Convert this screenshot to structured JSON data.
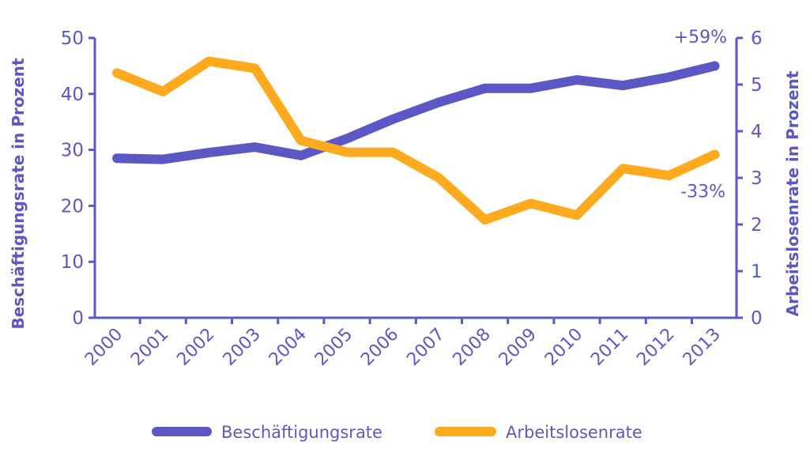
{
  "chart_data": {
    "type": "line",
    "categories": [
      "2000",
      "2001",
      "2002",
      "2003",
      "2004",
      "2005",
      "2006",
      "2007",
      "2008",
      "2009",
      "2010",
      "2011",
      "2012",
      "2013"
    ],
    "series": [
      {
        "name": "Beschäftigungsrate",
        "axis": "left",
        "color": "#5b58c6",
        "values": [
          28.5,
          28.3,
          29.5,
          30.5,
          29.0,
          32.0,
          35.5,
          38.5,
          41.0,
          41.0,
          42.5,
          41.5,
          43.0,
          45.0
        ]
      },
      {
        "name": "Arbeitslosenrate",
        "axis": "right",
        "color": "#fdaa1f",
        "values": [
          5.25,
          4.85,
          5.5,
          5.35,
          3.8,
          3.55,
          3.55,
          3.0,
          2.1,
          2.45,
          2.2,
          3.2,
          3.05,
          3.5
        ]
      }
    ],
    "ylabel_left": "Beschäftigungsrate in Prozent",
    "ylabel_right": "Arbeitslosenrate in Prozent",
    "ylim_left": [
      0,
      50
    ],
    "ylim_right": [
      0,
      6
    ],
    "yticks_left": [
      "0",
      "10",
      "20",
      "30",
      "40",
      "50"
    ],
    "yticks_right": [
      "0",
      "1",
      "2",
      "3",
      "4",
      "5",
      "6"
    ],
    "annotations": [
      {
        "text": "+59%",
        "series": "Beschäftigungsrate"
      },
      {
        "text": "-33%",
        "series": "Arbeitslosenrate"
      }
    ],
    "legend_position": "bottom",
    "grid": false
  }
}
